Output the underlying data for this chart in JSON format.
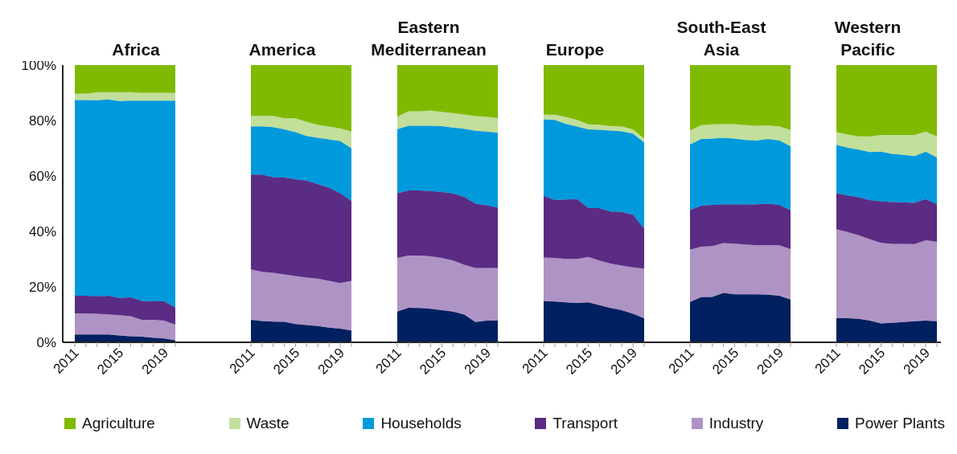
{
  "chart_data": [
    {
      "type": "area",
      "stacked": true,
      "title": "Africa",
      "categories": [
        "2011",
        null,
        null,
        null,
        "2015",
        null,
        null,
        null,
        "2019",
        null
      ],
      "ylim": [
        0,
        100
      ],
      "yticks": [
        {
          "value": 0,
          "label": "0%"
        },
        {
          "value": 20,
          "label": "20%"
        },
        {
          "value": 40,
          "label": "40%"
        },
        {
          "value": 60,
          "label": "60%"
        },
        {
          "value": 80,
          "label": "80%"
        },
        {
          "value": 100,
          "label": "100%"
        }
      ],
      "legend": "bottom",
      "series": [
        {
          "name": "Power Plants",
          "color": "#002060",
          "values": [
            2.8,
            2.8,
            2.8,
            2.8,
            2.5,
            2.2,
            2.0,
            1.7,
            1.4,
            0.7
          ]
        },
        {
          "name": "Industry",
          "color": "#ae94c4",
          "values": [
            7.6,
            7.6,
            7.5,
            7.3,
            7.3,
            7.2,
            6.1,
            6.4,
            6.4,
            5.7
          ]
        },
        {
          "name": "Transport",
          "color": "#5b2c83",
          "values": [
            6.4,
            6.4,
            6.3,
            6.7,
            6.2,
            6.8,
            6.8,
            6.7,
            7.0,
            6.2
          ]
        },
        {
          "name": "Households",
          "color": "#0099dc",
          "values": [
            70.6,
            70.6,
            70.7,
            70.8,
            71.0,
            71.0,
            72.3,
            72.4,
            72.4,
            74.6
          ]
        },
        {
          "name": "Waste",
          "color": "#c2df9b",
          "values": [
            2.3,
            2.3,
            2.9,
            2.6,
            3.2,
            3.0,
            2.8,
            2.8,
            2.8,
            2.8
          ]
        },
        {
          "name": "Agriculture",
          "color": "#7fba00",
          "values": [
            10.3,
            10.3,
            9.8,
            9.8,
            9.8,
            9.8,
            10.0,
            10.0,
            10.0,
            10.0
          ]
        }
      ]
    },
    {
      "type": "area",
      "stacked": true,
      "title": "America",
      "categories": [
        "2011",
        null,
        null,
        null,
        "2015",
        null,
        null,
        null,
        "2019",
        null
      ],
      "ylim": [
        0,
        100
      ],
      "tick_labels": "x",
      "series": [
        {
          "color": "#002060",
          "values": [
            8.1,
            7.7,
            7.5,
            7.4,
            6.6,
            6.2,
            5.9,
            5.3,
            4.9,
            4.3
          ]
        },
        {
          "color": "#ae94c4",
          "values": [
            18.2,
            17.7,
            17.6,
            17.1,
            17.3,
            17.1,
            17.1,
            16.9,
            16.5,
            17.9
          ]
        },
        {
          "color": "#5b2c83",
          "values": [
            34.2,
            35.1,
            34.5,
            35.0,
            34.9,
            35.0,
            34.0,
            33.6,
            32.4,
            28.8
          ]
        },
        {
          "color": "#0099dc",
          "values": [
            17.4,
            17.4,
            18.0,
            17.3,
            17.0,
            16.1,
            16.8,
            17.4,
            18.8,
            19.0
          ]
        },
        {
          "color": "#c2df9b",
          "values": [
            3.8,
            3.8,
            4.1,
            4.0,
            5.0,
            5.1,
            4.6,
            4.6,
            4.6,
            6.0
          ]
        },
        {
          "color": "#7fba00",
          "values": [
            18.3,
            18.3,
            18.3,
            19.2,
            19.2,
            20.5,
            21.6,
            22.2,
            22.8,
            24.0
          ]
        }
      ]
    },
    {
      "type": "area",
      "stacked": true,
      "title": "Eastern Mediterranean",
      "categories": [
        "2011",
        null,
        null,
        null,
        "2015",
        null,
        null,
        null,
        "2019",
        null
      ],
      "ylim": [
        0,
        100
      ],
      "tick_labels": "x",
      "series": [
        {
          "color": "#002060",
          "values": [
            11.1,
            12.5,
            12.4,
            12.1,
            11.6,
            11.1,
            10.0,
            7.3,
            7.8,
            7.8
          ]
        },
        {
          "color": "#ae94c4",
          "values": [
            19.3,
            18.8,
            18.9,
            18.9,
            18.8,
            18.4,
            18.0,
            19.5,
            19.0,
            19.0
          ]
        },
        {
          "color": "#5b2c83",
          "values": [
            23.4,
            23.5,
            23.5,
            23.6,
            23.8,
            24.2,
            24.5,
            23.2,
            22.6,
            21.8
          ]
        },
        {
          "color": "#0099dc",
          "values": [
            23.1,
            23.3,
            23.3,
            23.5,
            23.8,
            23.8,
            24.5,
            26.3,
            26.6,
            27.0
          ]
        },
        {
          "color": "#c2df9b",
          "values": [
            4.5,
            5.2,
            5.2,
            5.5,
            5.1,
            5.2,
            5.2,
            5.3,
            5.4,
            5.3
          ]
        },
        {
          "color": "#7fba00",
          "values": [
            18.6,
            16.7,
            16.7,
            16.4,
            16.9,
            17.3,
            17.8,
            18.4,
            18.6,
            19.1
          ]
        }
      ]
    },
    {
      "type": "area",
      "stacked": true,
      "title": "Europe",
      "categories": [
        "2011",
        null,
        null,
        null,
        "2015",
        null,
        null,
        null,
        "2019",
        null
      ],
      "ylim": [
        0,
        100
      ],
      "tick_labels": "x",
      "series": [
        {
          "color": "#002060",
          "values": [
            14.9,
            14.7,
            14.4,
            14.2,
            14.4,
            13.4,
            12.4,
            11.6,
            10.3,
            8.7
          ]
        },
        {
          "color": "#ae94c4",
          "values": [
            15.7,
            15.7,
            15.7,
            15.9,
            16.4,
            16.1,
            16.0,
            16.1,
            16.7,
            17.9
          ]
        },
        {
          "color": "#5b2c83",
          "values": [
            22.3,
            20.9,
            21.4,
            21.6,
            17.6,
            18.9,
            18.8,
            19.3,
            19.0,
            14.4
          ]
        },
        {
          "color": "#0099dc",
          "values": [
            27.5,
            28.9,
            27.3,
            26.1,
            28.4,
            28.3,
            29.2,
            29.1,
            29.3,
            31.1
          ]
        },
        {
          "color": "#c2df9b",
          "values": [
            1.7,
            1.9,
            2.4,
            2.4,
            1.8,
            1.8,
            1.6,
            1.8,
            1.5,
            1.4
          ]
        },
        {
          "color": "#7fba00",
          "values": [
            17.9,
            17.9,
            18.8,
            19.8,
            21.4,
            21.5,
            22.0,
            22.1,
            23.2,
            26.5
          ]
        }
      ]
    },
    {
      "type": "area",
      "stacked": true,
      "title": "South-East Asia",
      "categories": [
        "2011",
        null,
        null,
        null,
        "2015",
        null,
        null,
        null,
        "2019",
        null
      ],
      "ylim": [
        0,
        100
      ],
      "tick_labels": "x",
      "series": [
        {
          "color": "#002060",
          "values": [
            14.6,
            16.3,
            16.4,
            17.8,
            17.3,
            17.3,
            17.3,
            17.2,
            16.8,
            15.4
          ]
        },
        {
          "color": "#ae94c4",
          "values": [
            18.8,
            18.2,
            18.3,
            18.0,
            18.3,
            18.0,
            17.7,
            17.9,
            18.2,
            18.2
          ]
        },
        {
          "color": "#5b2c83",
          "values": [
            14.3,
            14.8,
            14.9,
            14.0,
            14.2,
            14.4,
            14.8,
            14.9,
            14.6,
            14.1
          ]
        },
        {
          "color": "#0099dc",
          "values": [
            23.7,
            24.0,
            23.9,
            24.0,
            23.7,
            23.3,
            23.0,
            23.3,
            23.2,
            23.0
          ]
        },
        {
          "color": "#c2df9b",
          "values": [
            5.0,
            5.0,
            5.1,
            5.0,
            5.2,
            5.3,
            5.3,
            4.9,
            5.1,
            5.9
          ]
        },
        {
          "color": "#7fba00",
          "values": [
            23.6,
            21.7,
            21.4,
            21.2,
            21.3,
            21.7,
            21.9,
            21.8,
            22.1,
            23.4
          ]
        }
      ]
    },
    {
      "type": "area",
      "stacked": true,
      "title": "Western Pacific",
      "categories": [
        "2011",
        null,
        null,
        null,
        "2015",
        null,
        null,
        null,
        "2019",
        null
      ],
      "ylim": [
        0,
        100
      ],
      "tick_labels": "x",
      "series": [
        {
          "color": "#002060",
          "values": [
            8.7,
            8.7,
            8.5,
            7.8,
            6.8,
            7.0,
            7.3,
            7.6,
            7.8,
            7.6
          ]
        },
        {
          "color": "#ae94c4",
          "values": [
            32.1,
            31.1,
            30.1,
            29.4,
            29.1,
            28.5,
            28.2,
            27.8,
            29.0,
            28.7
          ]
        },
        {
          "color": "#5b2c83",
          "values": [
            13.0,
            13.2,
            13.7,
            14.1,
            15.0,
            15.1,
            15.0,
            14.9,
            14.9,
            13.5
          ]
        },
        {
          "color": "#0099dc",
          "values": [
            17.4,
            17.2,
            17.2,
            17.3,
            17.9,
            17.4,
            17.1,
            16.9,
            17.1,
            16.9
          ]
        },
        {
          "color": "#c2df9b",
          "values": [
            4.6,
            4.8,
            4.8,
            5.7,
            6.0,
            6.8,
            7.2,
            7.6,
            7.2,
            7.6
          ]
        },
        {
          "color": "#7fba00",
          "values": [
            24.2,
            25.0,
            25.7,
            25.7,
            25.2,
            25.2,
            25.2,
            25.2,
            24.0,
            25.7
          ]
        }
      ]
    }
  ]
}
